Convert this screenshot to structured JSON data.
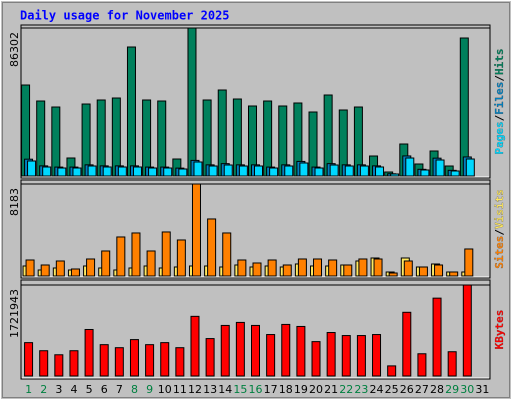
{
  "chart_data": [
    {
      "type": "bar",
      "title": "Daily usage for November 2025",
      "ylim": [
        0,
        86302
      ],
      "yticks": [
        86302
      ],
      "legend_separator": "/",
      "series": [
        {
          "name": "Hits",
          "color": "#00805c",
          "values": [
            53060,
            43730,
            40230,
            10500,
            41980,
            44320,
            45480,
            75220,
            44320,
            43730,
            9910,
            86302,
            44320,
            50150,
            44900,
            40820,
            43730,
            40820,
            42570,
            37320,
            47230,
            38490,
            40230,
            11660,
            2330,
            18660,
            7000,
            14580,
            5830,
            80470,
            null
          ]
        },
        {
          "name": "Files",
          "color": "#0080c0",
          "values": [
            9800,
            5900,
            5200,
            5200,
            6500,
            5900,
            5900,
            5900,
            5200,
            5200,
            4600,
            9100,
            6500,
            7200,
            6500,
            6500,
            5200,
            6500,
            8500,
            5200,
            7200,
            6500,
            6500,
            5900,
            1300,
            11700,
            3900,
            10400,
            3300,
            11100,
            null
          ]
        },
        {
          "name": "Pages",
          "color": "#00d8ff",
          "values": [
            8750,
            5250,
            4660,
            4660,
            5830,
            5250,
            5250,
            5250,
            4660,
            4660,
            4080,
            8160,
            5830,
            6410,
            5830,
            5830,
            4660,
            5830,
            7580,
            4660,
            6410,
            5830,
            5830,
            5250,
            1170,
            10490,
            3500,
            9330,
            2920,
            9910,
            null
          ]
        }
      ]
    },
    {
      "type": "bar",
      "ylim": [
        0,
        8183
      ],
      "yticks": [
        8183
      ],
      "legend_separator": "/",
      "series": [
        {
          "name": "Visits",
          "color": "#ffe860",
          "values": [
            890,
            534,
            712,
            534,
            890,
            712,
            534,
            712,
            890,
            712,
            801,
            890,
            890,
            801,
            979,
            801,
            890,
            801,
            1068,
            890,
            890,
            979,
            1335,
            1602,
            356,
            1602,
            801,
            1068,
            356,
            356,
            null
          ]
        },
        {
          "name": "Sites",
          "color": "#ff8000",
          "values": [
            1424,
            979,
            1335,
            623,
            1513,
            2225,
            3471,
            3827,
            2225,
            3916,
            3204,
            8183,
            5073,
            3827,
            1424,
            1157,
            1424,
            979,
            1513,
            1513,
            1424,
            979,
            1513,
            1513,
            267,
            1335,
            801,
            979,
            356,
            2403,
            null
          ]
        }
      ]
    },
    {
      "type": "bar",
      "ylim": [
        0,
        1721943
      ],
      "yticks": [
        1721943
      ],
      "categories": [
        "1",
        "2",
        "3",
        "4",
        "5",
        "6",
        "7",
        "8",
        "9",
        "10",
        "11",
        "12",
        "13",
        "14",
        "15",
        "16",
        "17",
        "18",
        "19",
        "20",
        "21",
        "22",
        "23",
        "24",
        "25",
        "26",
        "27",
        "28",
        "29",
        "30",
        "31"
      ],
      "category_colors": [
        "#008040",
        "#008040",
        "#000000",
        "#000000",
        "#000000",
        "#000000",
        "#000000",
        "#008040",
        "#008040",
        "#000000",
        "#000000",
        "#000000",
        "#000000",
        "#000000",
        "#008040",
        "#008040",
        "#000000",
        "#000000",
        "#000000",
        "#000000",
        "#000000",
        "#008040",
        "#008040",
        "#000000",
        "#000000",
        "#000000",
        "#000000",
        "#000000",
        "#008040",
        "#008040",
        "#000000"
      ],
      "series": [
        {
          "name": "KBytes",
          "color": "#ff0000",
          "values": [
            631400,
            478300,
            401800,
            478300,
            880100,
            593100,
            535700,
            688800,
            593100,
            631400,
            535700,
            1128800,
            707900,
            956700,
            1014000,
            956700,
            784500,
            975800,
            937500,
            650500,
            822700,
            765300,
            765300,
            784500,
            191300,
            1205400,
            420900,
            1473200,
            459200,
            1721943,
            null
          ]
        }
      ]
    }
  ]
}
